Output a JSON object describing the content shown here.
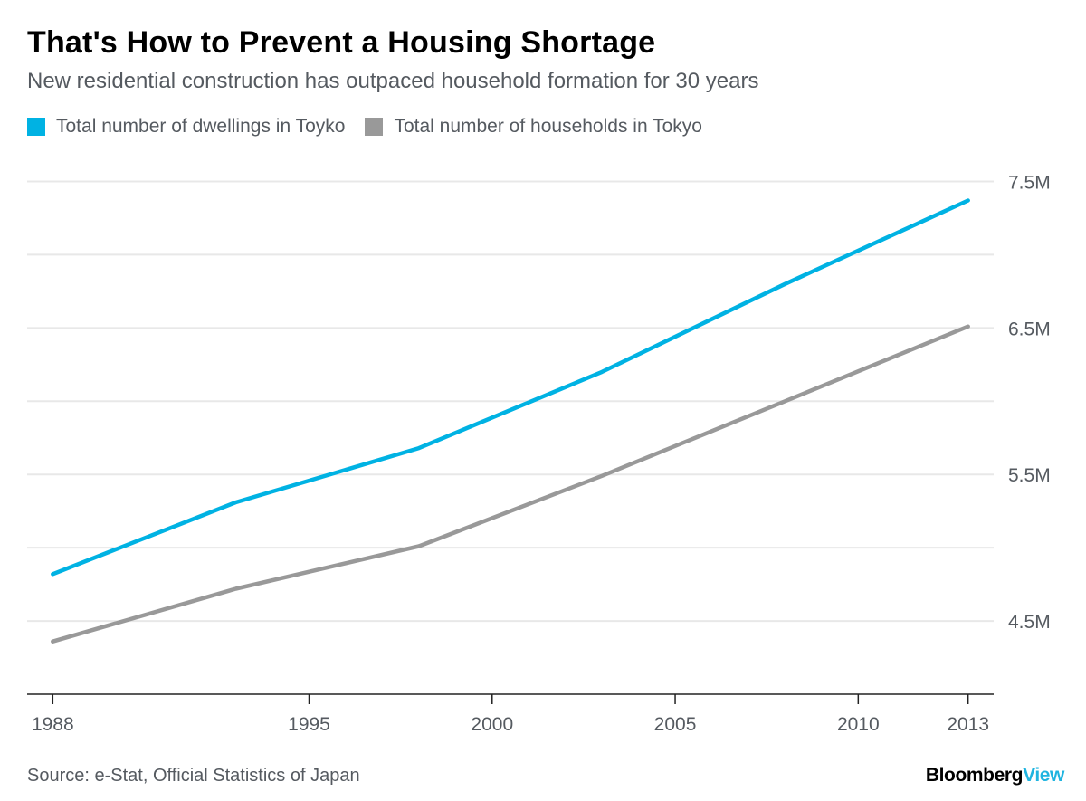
{
  "header": {
    "title": "That's How to Prevent a Housing Shortage",
    "subtitle": "New residential construction has outpaced household formation for 30 years"
  },
  "footer": {
    "source": "Source: e-Stat, Official Statistics of Japan",
    "logo_part1": "Bloomberg",
    "logo_part2": "View"
  },
  "colors": {
    "dwellings": "#00b2e3",
    "households": "#999999",
    "grid": "#e8e8e8",
    "axis": "#222222",
    "text": "#555a60"
  },
  "chart_data": {
    "type": "line",
    "title": "That's How to Prevent a Housing Shortage",
    "subtitle": "New residential construction has outpaced household formation for 30 years",
    "xlabel": "",
    "ylabel": "",
    "x_ticks": [
      1988,
      1995,
      2000,
      2005,
      2010,
      2013
    ],
    "xlim": [
      1987.3,
      2013.7
    ],
    "ylim": [
      4.0,
      7.75
    ],
    "y_ticks": [
      4.5,
      5.5,
      6.5,
      7.5
    ],
    "y_tick_labels": [
      "4.5M",
      "5.5M",
      "6.5M",
      "7.5M"
    ],
    "y_gridlines": [
      4.5,
      5.0,
      5.5,
      6.0,
      6.5,
      7.0,
      7.5
    ],
    "grid": true,
    "legend_position": "top-left",
    "series": [
      {
        "name": "Total number of dwellings in Toyko",
        "color": "#00b2e3",
        "x": [
          1988,
          1993,
          1998,
          2003,
          2008,
          2013
        ],
        "y": [
          4.82,
          5.31,
          5.68,
          6.2,
          6.8,
          7.37
        ]
      },
      {
        "name": "Total number of households in Tokyo",
        "color": "#999999",
        "x": [
          1988,
          1993,
          1998,
          2003,
          2008,
          2013
        ],
        "y": [
          4.36,
          4.72,
          5.01,
          5.49,
          6.0,
          6.51
        ]
      }
    ]
  }
}
